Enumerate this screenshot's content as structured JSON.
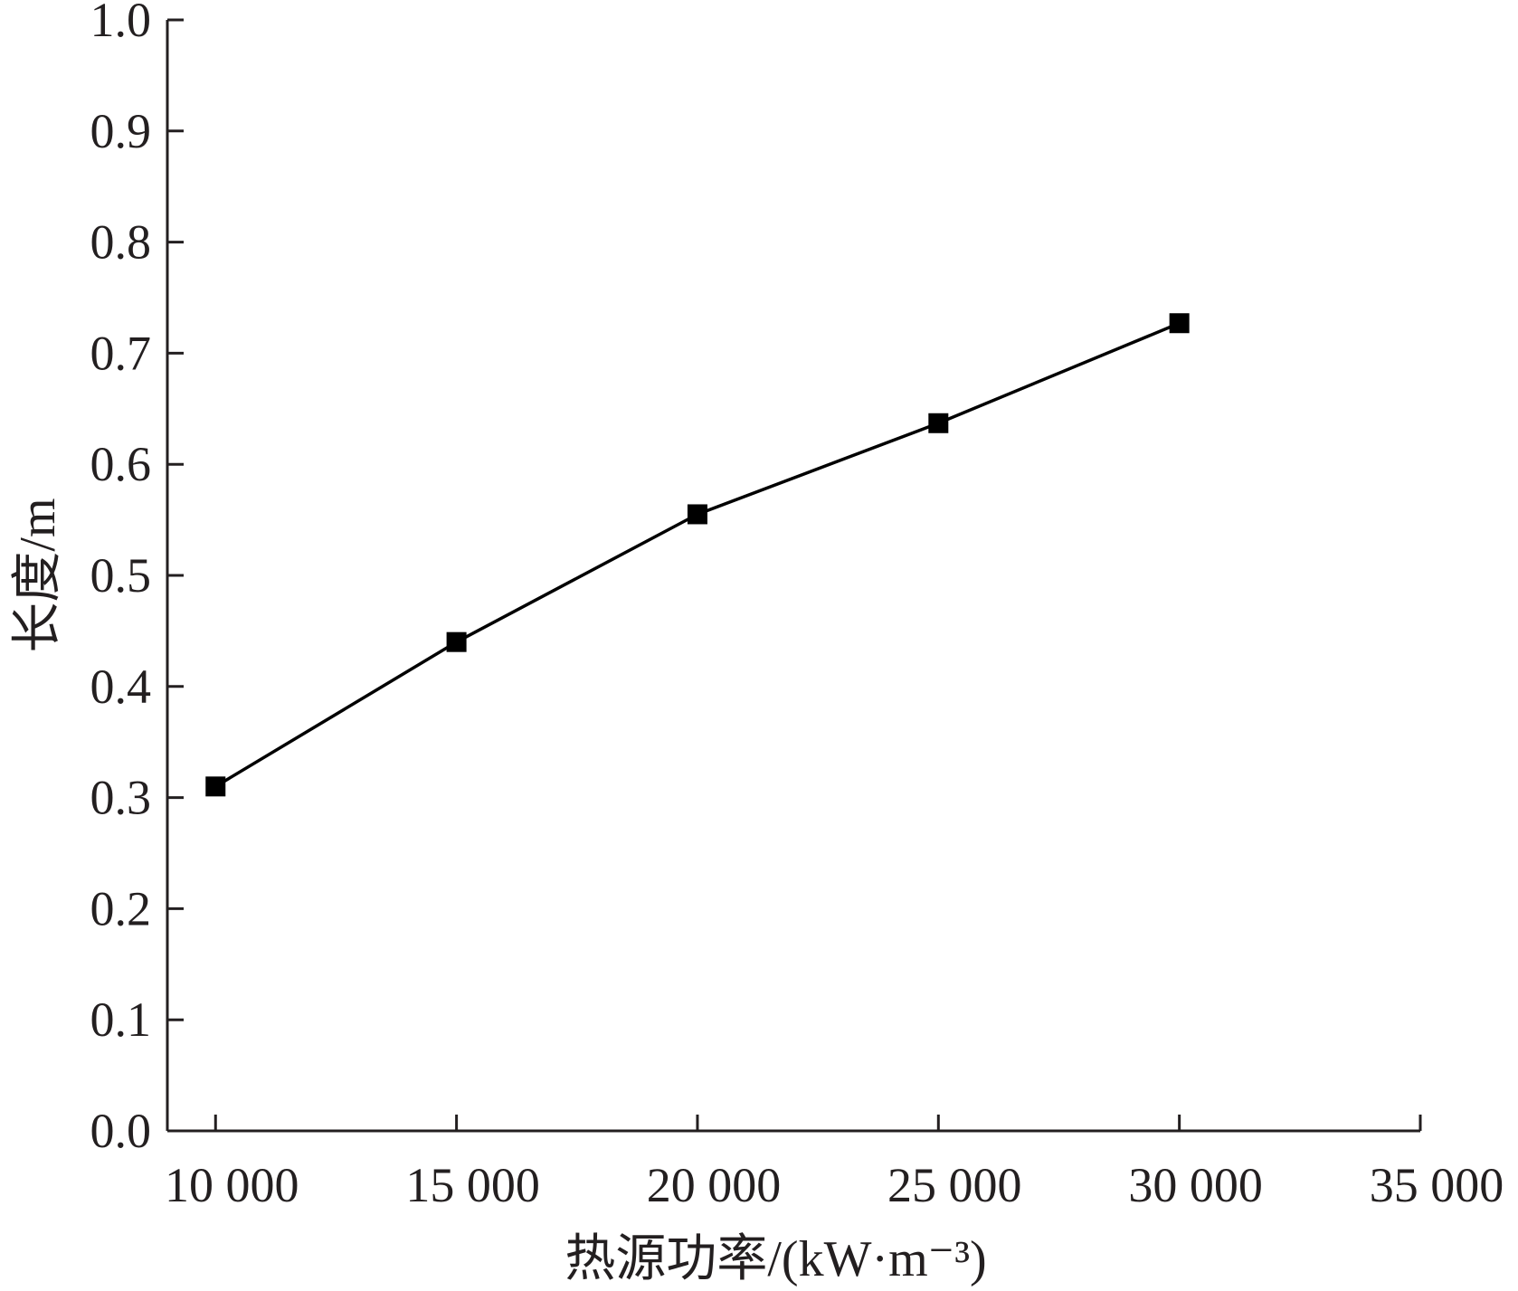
{
  "chart_data": {
    "type": "line",
    "xlabel": "热源功率/(kW·m⁻³)",
    "ylabel": "长度/m",
    "xlim": [
      9000,
      35000
    ],
    "ylim": [
      0.0,
      1.0
    ],
    "x_ticks": [
      10000,
      15000,
      20000,
      25000,
      30000,
      35000
    ],
    "x_tick_labels": [
      "10 000",
      "15 000",
      "20 000",
      "25 000",
      "30 000",
      "35 000"
    ],
    "y_ticks": [
      0.0,
      0.1,
      0.2,
      0.3,
      0.4,
      0.5,
      0.6,
      0.7,
      0.8,
      0.9,
      1.0
    ],
    "y_tick_labels": [
      "0.0",
      "0.1",
      "0.2",
      "0.3",
      "0.4",
      "0.5",
      "0.6",
      "0.7",
      "0.8",
      "0.9",
      "1.0"
    ],
    "grid": false,
    "marker": "square",
    "series": [
      {
        "x": [
          10000,
          15000,
          20000,
          25000,
          30000
        ],
        "values": [
          0.31,
          0.44,
          0.555,
          0.637,
          0.727
        ],
        "color": "#000000"
      }
    ]
  }
}
